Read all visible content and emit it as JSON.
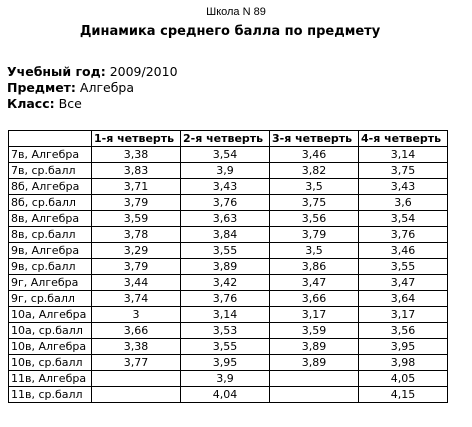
{
  "report": {
    "school": "Школа N 89",
    "title": "Динамика среднего балла по предмету",
    "meta": [
      {
        "label": "Учебный год:",
        "value": "2009/2010"
      },
      {
        "label": "Предмет:",
        "value": "Алгебра"
      },
      {
        "label": "Класс:",
        "value": "Все"
      }
    ]
  },
  "table": {
    "columns": [
      "1-я четверть",
      "2-я четверть",
      "3-я четверть",
      "4-я четверть"
    ],
    "rows": [
      {
        "name": "7в, Алгебра",
        "values": [
          "3,38",
          "3,54",
          "3,46",
          "3,14"
        ]
      },
      {
        "name": "7в, ср.балл",
        "values": [
          "3,83",
          "3,9",
          "3,82",
          "3,75"
        ]
      },
      {
        "name": "8б, Алгебра",
        "values": [
          "3,71",
          "3,43",
          "3,5",
          "3,43"
        ]
      },
      {
        "name": "8б, ср.балл",
        "values": [
          "3,79",
          "3,76",
          "3,75",
          "3,6"
        ]
      },
      {
        "name": "8в, Алгебра",
        "values": [
          "3,59",
          "3,63",
          "3,56",
          "3,54"
        ]
      },
      {
        "name": "8в, ср.балл",
        "values": [
          "3,78",
          "3,84",
          "3,79",
          "3,76"
        ]
      },
      {
        "name": "9в, Алгебра",
        "values": [
          "3,29",
          "3,55",
          "3,5",
          "3,46"
        ]
      },
      {
        "name": "9в, ср.балл",
        "values": [
          "3,79",
          "3,89",
          "3,86",
          "3,55"
        ]
      },
      {
        "name": "9г, Алгебра",
        "values": [
          "3,44",
          "3,42",
          "3,47",
          "3,47"
        ]
      },
      {
        "name": "9г, ср.балл",
        "values": [
          "3,74",
          "3,76",
          "3,66",
          "3,64"
        ]
      },
      {
        "name": "10а, Алгебра",
        "values": [
          "3",
          "3,14",
          "3,17",
          "3,17"
        ]
      },
      {
        "name": "10а, ср.балл",
        "values": [
          "3,66",
          "3,53",
          "3,59",
          "3,56"
        ]
      },
      {
        "name": "10в, Алгебра",
        "values": [
          "3,38",
          "3,55",
          "3,89",
          "3,95"
        ]
      },
      {
        "name": "10в, ср.балл",
        "values": [
          "3,77",
          "3,95",
          "3,89",
          "3,98"
        ]
      },
      {
        "name": "11в, Алгебра",
        "values": [
          "",
          "3,9",
          "",
          "4,05"
        ]
      },
      {
        "name": "11в, ср.балл",
        "values": [
          "",
          "4,04",
          "",
          "4,15"
        ]
      }
    ]
  }
}
